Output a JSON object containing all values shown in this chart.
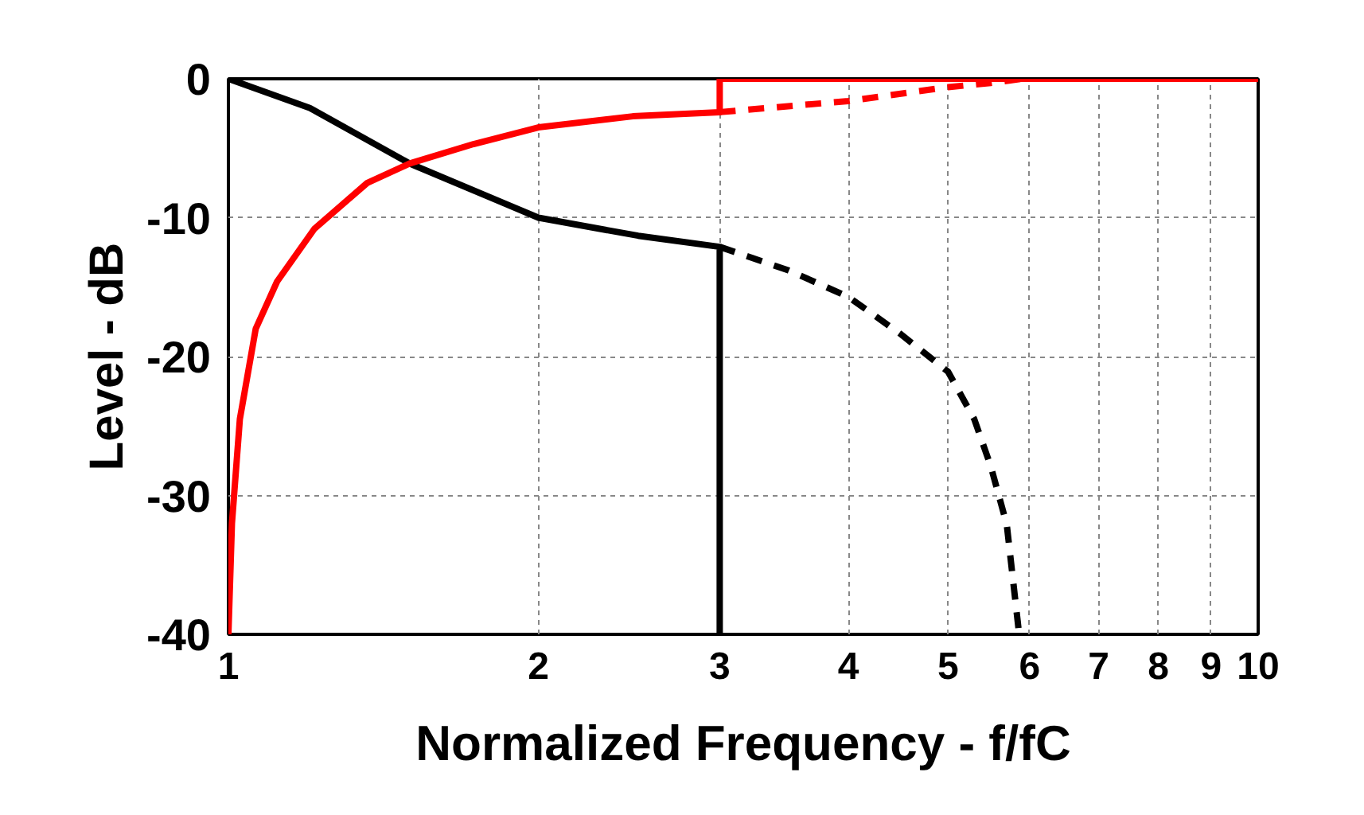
{
  "chart_data": {
    "type": "line",
    "xlabel": "Normalized Frequency - f/fC",
    "ylabel": "Level - dB",
    "log": "x",
    "xlim": [
      1,
      10
    ],
    "ylim": [
      -40,
      0
    ],
    "xticks": [
      1,
      2,
      3,
      4,
      5,
      6,
      7,
      8,
      9,
      10
    ],
    "yticks": [
      0,
      -10,
      -20,
      -30,
      -40
    ],
    "grid": true,
    "marker": "none",
    "series": [
      {
        "color": "#000000",
        "line_style": "solid",
        "x": [
          1,
          1.2,
          1.5,
          2,
          2.5,
          3,
          3
        ],
        "values": [
          0,
          -2.1,
          -6.1,
          -10.0,
          -11.3,
          -12.1,
          -40
        ]
      },
      {
        "color": "#000000",
        "line_style": "dashed",
        "x": [
          3,
          3.5,
          4,
          4.5,
          5,
          5.3,
          5.5,
          5.7,
          5.86
        ],
        "values": [
          -12.1,
          -13.8,
          -15.7,
          -18.4,
          -21.1,
          -24.5,
          -27.9,
          -32.1,
          -40
        ]
      },
      {
        "color": "#ff0000",
        "line_style": "solid",
        "x": [
          1,
          1.008,
          1.026,
          1.063,
          1.115,
          1.212,
          1.364,
          1.5,
          1.73,
          2,
          2.47,
          3,
          3,
          10
        ],
        "values": [
          -40,
          -32,
          -24.5,
          -18,
          -14.6,
          -10.8,
          -7.5,
          -6.1,
          -4.7,
          -3.5,
          -2.7,
          -2.4,
          0,
          0
        ]
      },
      {
        "color": "#ff0000",
        "line_style": "dashed",
        "x": [
          3,
          4,
          5,
          5.5,
          5.9
        ],
        "values": [
          -2.4,
          -1.6,
          -0.6,
          -0.3,
          0
        ]
      }
    ]
  }
}
